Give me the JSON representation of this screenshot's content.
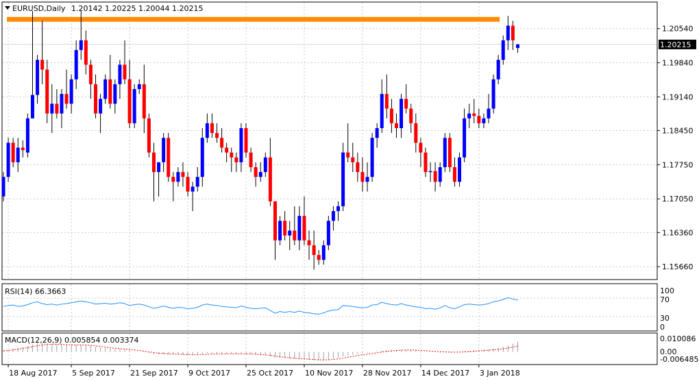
{
  "header": {
    "symbol_timeframe": "EURUSD,Daily",
    "ohlc": "1.20142 1.20225 1.20044 1.20215"
  },
  "price_panel": {
    "current_price_label": "1.20215",
    "resistance_color": "#FF8C00",
    "bull_color": "#0000FF",
    "bear_color": "#FF0000"
  },
  "rsi_panel": {
    "label": "RSI(14) 66.3663",
    "levels": [
      "100",
      "70",
      "30",
      "0"
    ],
    "line_color": "#1E90FF"
  },
  "macd_panel": {
    "label": "MACD(12,26,9) 0.005854 0.003374",
    "axis_labels": [
      "0.010086",
      "0.00",
      "-0.006485"
    ],
    "signal_color": "#FF0000",
    "hist_color": "#A0A0A0"
  },
  "chart_data": {
    "type": "candlestick",
    "y_ticks": [
      1.2054,
      1.1984,
      1.1914,
      1.1845,
      1.1775,
      1.1705,
      1.1636,
      1.1566
    ],
    "y_tick_labels": [
      "1.20540",
      "1.19840",
      "1.19140",
      "1.18450",
      "1.17750",
      "1.17050",
      "1.16360",
      "1.15660"
    ],
    "ylim": [
      1.1541,
      1.2107
    ],
    "x_tick_labels": [
      "18 Aug 2017",
      "5 Sep 2017",
      "21 Sep 2017",
      "9 Oct 2017",
      "25 Oct 2017",
      "10 Nov 2017",
      "28 Nov 2017",
      "14 Dec 2017",
      "3 Jan 2018"
    ],
    "x_tick_indices": [
      1,
      14,
      26,
      38,
      50,
      62,
      74,
      86,
      98
    ],
    "resistance_level": 1.2073,
    "resistance_range": [
      1,
      102
    ],
    "candles": [
      [
        1.171,
        1.176,
        1.17,
        1.175
      ],
      [
        1.175,
        1.183,
        1.174,
        1.182
      ],
      [
        1.182,
        1.183,
        1.177,
        1.178
      ],
      [
        1.178,
        1.183,
        1.176,
        1.181
      ],
      [
        1.181,
        1.1825,
        1.179,
        1.1805
      ],
      [
        1.18,
        1.188,
        1.179,
        1.187
      ],
      [
        1.187,
        1.209,
        1.187,
        1.1918
      ],
      [
        1.1918,
        1.2,
        1.19,
        1.199
      ],
      [
        1.199,
        1.207,
        1.194,
        1.197
      ],
      [
        1.197,
        1.199,
        1.186,
        1.188
      ],
      [
        1.188,
        1.194,
        1.184,
        1.19
      ],
      [
        1.19,
        1.193,
        1.187,
        1.188
      ],
      [
        1.188,
        1.193,
        1.185,
        1.192
      ],
      [
        1.192,
        1.197,
        1.189,
        1.19
      ],
      [
        1.19,
        1.196,
        1.188,
        1.195
      ],
      [
        1.195,
        1.203,
        1.193,
        1.201
      ],
      [
        1.201,
        1.209,
        1.199,
        1.203
      ],
      [
        1.203,
        1.205,
        1.196,
        1.198
      ],
      [
        1.198,
        1.199,
        1.191,
        1.194
      ],
      [
        1.194,
        1.196,
        1.187,
        1.188
      ],
      [
        1.188,
        1.192,
        1.184,
        1.191
      ],
      [
        1.191,
        1.196,
        1.19,
        1.195
      ],
      [
        1.195,
        1.2,
        1.189,
        1.19
      ],
      [
        1.19,
        1.195,
        1.188,
        1.194
      ],
      [
        1.194,
        1.199,
        1.191,
        1.198
      ],
      [
        1.198,
        1.203,
        1.194,
        1.195
      ],
      [
        1.195,
        1.199,
        1.185,
        1.186
      ],
      [
        1.186,
        1.194,
        1.185,
        1.193
      ],
      [
        1.193,
        1.195,
        1.192,
        1.194
      ],
      [
        1.194,
        1.198,
        1.184,
        1.187
      ],
      [
        1.187,
        1.188,
        1.179,
        1.18
      ],
      [
        1.18,
        1.182,
        1.17,
        1.176
      ],
      [
        1.176,
        1.178,
        1.171,
        1.178
      ],
      [
        1.178,
        1.184,
        1.176,
        1.183
      ],
      [
        1.183,
        1.184,
        1.174,
        1.175
      ],
      [
        1.175,
        1.176,
        1.17,
        1.174
      ],
      [
        1.174,
        1.177,
        1.173,
        1.176
      ],
      [
        1.176,
        1.178,
        1.173,
        1.175
      ],
      [
        1.175,
        1.176,
        1.171,
        1.172
      ],
      [
        1.172,
        1.174,
        1.168,
        1.173
      ],
      [
        1.173,
        1.177,
        1.172,
        1.175
      ],
      [
        1.175,
        1.185,
        1.173,
        1.183
      ],
      [
        1.183,
        1.188,
        1.182,
        1.186
      ],
      [
        1.186,
        1.188,
        1.183,
        1.184
      ],
      [
        1.184,
        1.186,
        1.182,
        1.183
      ],
      [
        1.183,
        1.185,
        1.18,
        1.181
      ],
      [
        1.181,
        1.182,
        1.178,
        1.18
      ],
      [
        1.18,
        1.181,
        1.176,
        1.179
      ],
      [
        1.179,
        1.18,
        1.176,
        1.178
      ],
      [
        1.178,
        1.186,
        1.176,
        1.185
      ],
      [
        1.185,
        1.186,
        1.179,
        1.18
      ],
      [
        1.18,
        1.181,
        1.176,
        1.177
      ],
      [
        1.177,
        1.178,
        1.173,
        1.175
      ],
      [
        1.175,
        1.178,
        1.174,
        1.176
      ],
      [
        1.176,
        1.18,
        1.175,
        1.179
      ],
      [
        1.179,
        1.183,
        1.169,
        1.17
      ],
      [
        1.17,
        1.17,
        1.158,
        1.162
      ],
      [
        1.162,
        1.167,
        1.161,
        1.166
      ],
      [
        1.166,
        1.168,
        1.162,
        1.163
      ],
      [
        1.163,
        1.166,
        1.16,
        1.164
      ],
      [
        1.164,
        1.169,
        1.161,
        1.162
      ],
      [
        1.162,
        1.169,
        1.16,
        1.167
      ],
      [
        1.167,
        1.171,
        1.161,
        1.162
      ],
      [
        1.162,
        1.164,
        1.158,
        1.161
      ],
      [
        1.161,
        1.164,
        1.156,
        1.159
      ],
      [
        1.159,
        1.16,
        1.157,
        1.158
      ],
      [
        1.158,
        1.162,
        1.157,
        1.161
      ],
      [
        1.161,
        1.167,
        1.16,
        1.166
      ],
      [
        1.166,
        1.169,
        1.164,
        1.168
      ],
      [
        1.168,
        1.17,
        1.166,
        1.169
      ],
      [
        1.169,
        1.182,
        1.168,
        1.18
      ],
      [
        1.18,
        1.186,
        1.178,
        1.179
      ],
      [
        1.179,
        1.182,
        1.176,
        1.178
      ],
      [
        1.178,
        1.18,
        1.174,
        1.176
      ],
      [
        1.176,
        1.179,
        1.172,
        1.174
      ],
      [
        1.174,
        1.178,
        1.172,
        1.175
      ],
      [
        1.175,
        1.184,
        1.174,
        1.183
      ],
      [
        1.183,
        1.186,
        1.181,
        1.185
      ],
      [
        1.185,
        1.195,
        1.184,
        1.192
      ],
      [
        1.192,
        1.196,
        1.187,
        1.189
      ],
      [
        1.189,
        1.191,
        1.184,
        1.186
      ],
      [
        1.186,
        1.188,
        1.183,
        1.185
      ],
      [
        1.185,
        1.192,
        1.183,
        1.191
      ],
      [
        1.191,
        1.194,
        1.188,
        1.189
      ],
      [
        1.189,
        1.19,
        1.184,
        1.186
      ],
      [
        1.186,
        1.188,
        1.18,
        1.182
      ],
      [
        1.182,
        1.183,
        1.177,
        1.18
      ],
      [
        1.18,
        1.181,
        1.175,
        1.176
      ],
      [
        1.176,
        1.178,
        1.174,
        1.1762
      ],
      [
        1.1762,
        1.178,
        1.172,
        1.174
      ],
      [
        1.174,
        1.178,
        1.173,
        1.177
      ],
      [
        1.177,
        1.184,
        1.176,
        1.183
      ],
      [
        1.183,
        1.184,
        1.176,
        1.177
      ],
      [
        1.177,
        1.179,
        1.173,
        1.174
      ],
      [
        1.174,
        1.18,
        1.173,
        1.179
      ],
      [
        1.179,
        1.189,
        1.178,
        1.187
      ],
      [
        1.187,
        1.19,
        1.185,
        1.188
      ],
      [
        1.188,
        1.191,
        1.186,
        1.1875
      ],
      [
        1.1875,
        1.189,
        1.185,
        1.186
      ],
      [
        1.186,
        1.188,
        1.185,
        1.187
      ],
      [
        1.187,
        1.192,
        1.186,
        1.189
      ],
      [
        1.189,
        1.196,
        1.188,
        1.195
      ],
      [
        1.195,
        1.2,
        1.194,
        1.199
      ],
      [
        1.199,
        1.204,
        1.198,
        1.203
      ],
      [
        1.203,
        1.208,
        1.201,
        1.206
      ],
      [
        1.206,
        1.207,
        1.201,
        1.203
      ],
      [
        1.20142,
        1.20225,
        1.20044,
        1.20215
      ]
    ],
    "rsi_values": [
      52,
      54,
      55,
      52,
      53,
      56,
      60,
      62,
      58,
      56,
      57,
      55,
      57,
      58,
      60,
      62,
      64,
      62,
      60,
      57,
      58,
      59,
      57,
      58,
      60,
      58,
      54,
      56,
      57,
      55,
      51,
      48,
      50,
      53,
      50,
      48,
      50,
      49,
      47,
      48,
      50,
      55,
      57,
      55,
      54,
      52,
      51,
      50,
      49,
      53,
      50,
      48,
      47,
      48,
      49,
      43,
      37,
      41,
      39,
      41,
      39,
      42,
      39,
      38,
      36,
      35,
      38,
      42,
      44,
      45,
      54,
      53,
      52,
      50,
      49,
      50,
      55,
      56,
      61,
      58,
      56,
      55,
      58,
      55,
      53,
      51,
      50,
      47,
      48,
      46,
      49,
      54,
      49,
      47,
      51,
      56,
      57,
      56,
      55,
      56,
      58,
      62,
      64,
      67,
      71,
      68,
      66
    ],
    "macd_signal": [
      0.0006,
      0.0008,
      0.0012,
      0.0016,
      0.002,
      0.0024,
      0.003,
      0.0036,
      0.004,
      0.0043,
      0.0044,
      0.0044,
      0.0043,
      0.0042,
      0.0041,
      0.004,
      0.004,
      0.004,
      0.0038,
      0.0035,
      0.0032,
      0.0028,
      0.0024,
      0.0021,
      0.0019,
      0.0017,
      0.0014,
      0.0011,
      0.0008,
      0.0004,
      0.0,
      -0.0004,
      -0.0007,
      -0.0009,
      -0.0011,
      -0.0012,
      -0.0013,
      -0.0014,
      -0.0015,
      -0.0016,
      -0.0016,
      -0.0015,
      -0.0014,
      -0.0013,
      -0.0012,
      -0.0012,
      -0.0011,
      -0.0011,
      -0.0011,
      -0.0011,
      -0.0011,
      -0.0012,
      -0.0013,
      -0.0015,
      -0.0017,
      -0.002,
      -0.0024,
      -0.0028,
      -0.0031,
      -0.0034,
      -0.0036,
      -0.0038,
      -0.004,
      -0.0042,
      -0.0044,
      -0.0045,
      -0.0046,
      -0.0045,
      -0.0043,
      -0.004,
      -0.0036,
      -0.0031,
      -0.0026,
      -0.0021,
      -0.0017,
      -0.0013,
      -0.0009,
      -0.0005,
      -0.0001,
      0.0003,
      0.0006,
      0.0008,
      0.001,
      0.0011,
      0.0011,
      0.001,
      0.0009,
      0.0007,
      0.0005,
      0.0003,
      0.0001,
      0.0,
      -0.0001,
      -0.0001,
      -0.0001,
      0.0,
      0.0002,
      0.0004,
      0.0006,
      0.0008,
      0.001,
      0.0012,
      0.0015,
      0.0018,
      0.0022,
      0.0028,
      0.0034
    ],
    "macd_hist": [
      0.001,
      0.0014,
      0.002,
      0.0024,
      0.0028,
      0.0034,
      0.0044,
      0.0052,
      0.005,
      0.0048,
      0.0046,
      0.0044,
      0.0042,
      0.0042,
      0.004,
      0.0041,
      0.0042,
      0.004,
      0.0036,
      0.003,
      0.0026,
      0.0022,
      0.0018,
      0.0016,
      0.0016,
      0.0014,
      0.0008,
      0.0004,
      0.0002,
      -0.0002,
      -0.0008,
      -0.0012,
      -0.0014,
      -0.0014,
      -0.0016,
      -0.0016,
      -0.0016,
      -0.0017,
      -0.0018,
      -0.0018,
      -0.0016,
      -0.0012,
      -0.001,
      -0.001,
      -0.001,
      -0.0011,
      -0.0011,
      -0.0011,
      -0.0012,
      -0.001,
      -0.0012,
      -0.0014,
      -0.0016,
      -0.0018,
      -0.002,
      -0.0026,
      -0.0032,
      -0.0034,
      -0.0036,
      -0.0038,
      -0.004,
      -0.0042,
      -0.0044,
      -0.0046,
      -0.0048,
      -0.005,
      -0.0048,
      -0.0044,
      -0.004,
      -0.0034,
      -0.0026,
      -0.002,
      -0.0016,
      -0.0012,
      -0.0008,
      -0.0004,
      0.0,
      0.0004,
      0.0008,
      0.001,
      0.0012,
      0.0012,
      0.0013,
      0.0012,
      0.0011,
      0.0009,
      0.0006,
      0.0003,
      0.0001,
      -0.0001,
      -0.0002,
      -0.0002,
      -0.0003,
      -0.0002,
      0.0001,
      0.0004,
      0.0007,
      0.0009,
      0.0011,
      0.0013,
      0.0016,
      0.0019,
      0.0024,
      0.003,
      0.0038,
      0.0048,
      0.0059
    ]
  }
}
